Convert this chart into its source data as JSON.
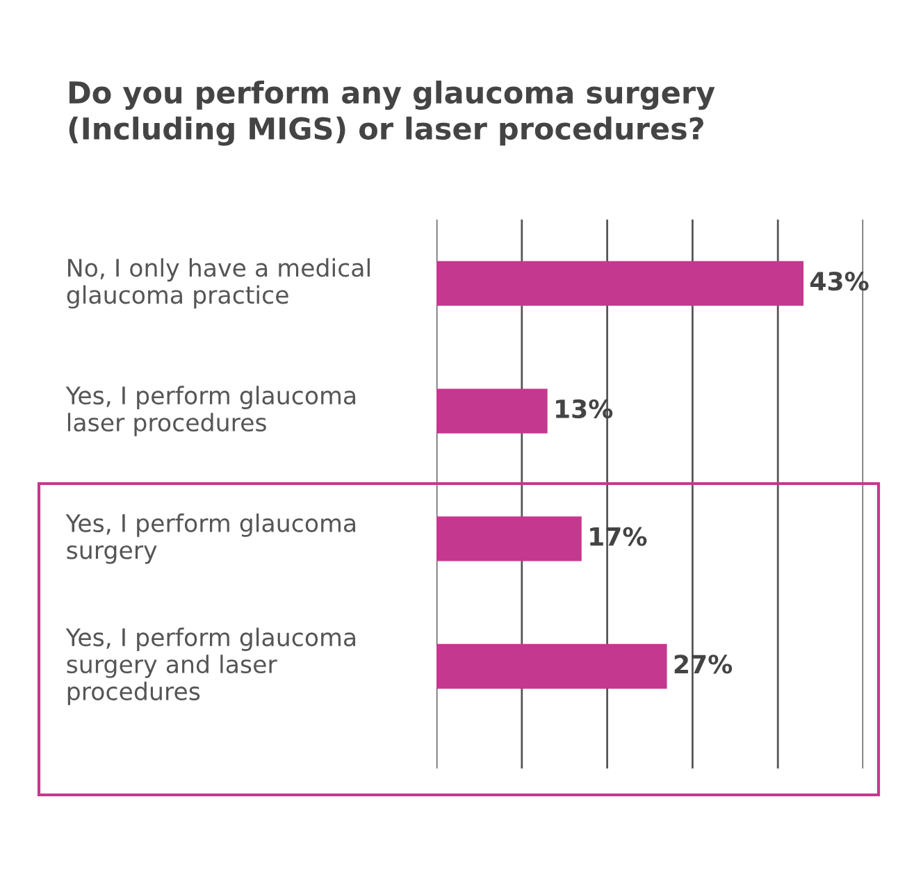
{
  "chart_data": {
    "type": "bar",
    "orientation": "horizontal",
    "title": "Do you perform any glaucoma surgery\n(Including MIGS) or laser procedures?",
    "categories": [
      "No, I only have a medical\nglaucoma practice",
      "Yes, I perform glaucoma\nlaser procedures",
      "Yes, I perform glaucoma\nsurgery",
      "Yes, I perform glaucoma\nsurgery and laser\nprocedures"
    ],
    "values": [
      43,
      13,
      17,
      27
    ],
    "value_labels": [
      "43%",
      "13%",
      "17%",
      "27%"
    ],
    "color": "#c4388f",
    "xlim": [
      0,
      50
    ],
    "xticks": [
      {
        "value": 0,
        "label": null
      },
      {
        "value": 10,
        "label": null
      },
      {
        "value": 20,
        "label": null
      },
      {
        "value": 30,
        "label": null
      },
      {
        "value": 40,
        "label": null
      },
      {
        "value": 50,
        "label": null
      }
    ],
    "grid": "x",
    "tick_labels": "y"
  }
}
